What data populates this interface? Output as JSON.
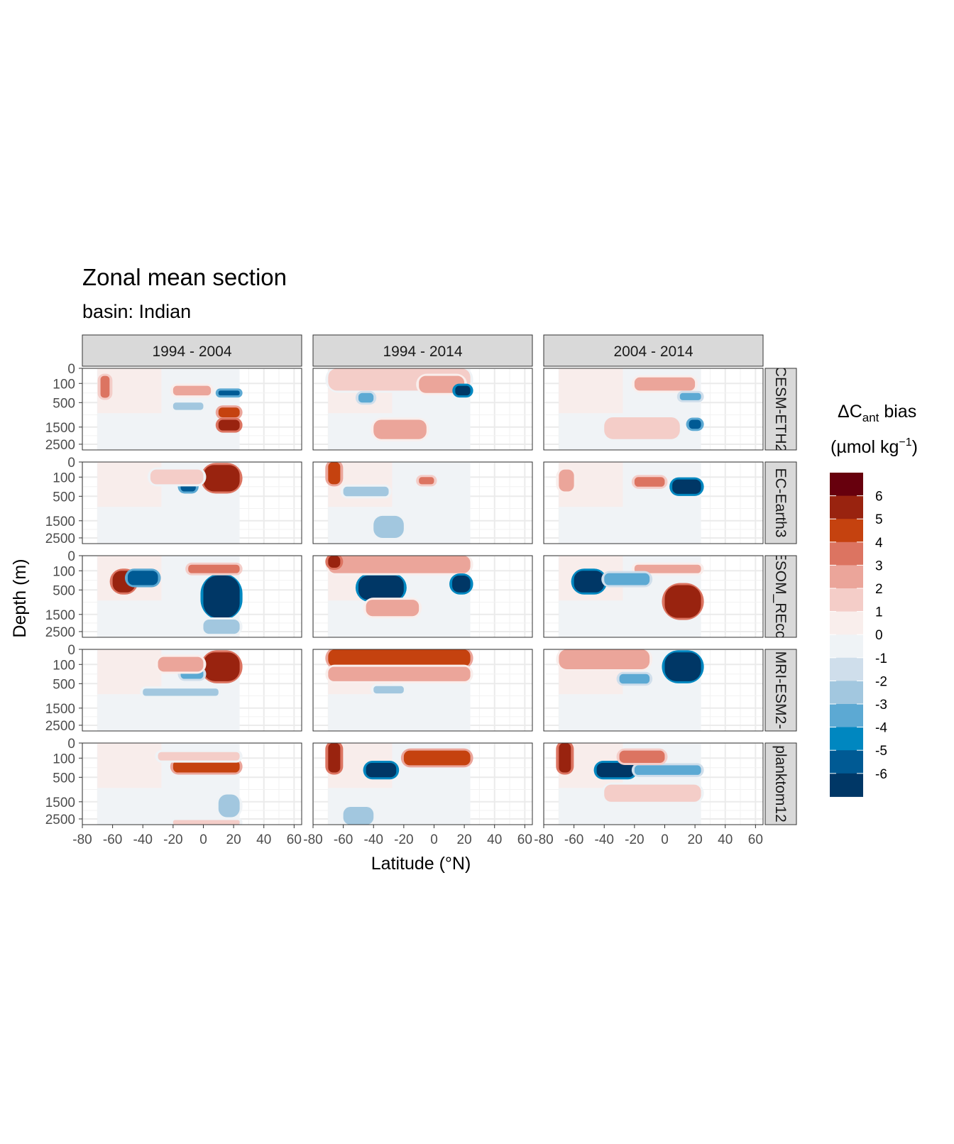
{
  "title": "Zonal mean section",
  "subtitle": "basin: Indian",
  "chart_data": {
    "type": "heatmap",
    "title": "Zonal mean section",
    "subtitle": "basin: Indian",
    "xlabel": "Latitude (°N)",
    "ylabel": "Depth (m)",
    "x_ticks": [
      -80,
      -60,
      -40,
      -20,
      0,
      20,
      40,
      60
    ],
    "x_tick_labels": [
      "-80",
      "-60",
      "-40",
      "-20",
      "0",
      "20",
      "40",
      "60"
    ],
    "xlim": [
      -80,
      65
    ],
    "y_ticks": [
      0,
      100,
      500,
      1500,
      2500
    ],
    "y_tick_labels": [
      "0",
      "100",
      "500",
      "1500",
      "2500"
    ],
    "ylim": [
      3000,
      0
    ],
    "y_reversed": true,
    "data_lat_range": [
      -70,
      24
    ],
    "columns": [
      "1994 - 2004",
      "1994 - 2014",
      "2004 - 2014"
    ],
    "rows": [
      "CESM-ETH2",
      "EC-Earth3",
      "FESOM_REcoM",
      "MRI-ESM2-",
      "planktom12"
    ],
    "row_labels_shown": [
      "CESM-ETH2",
      "EC-Earth3",
      "FESOM_REcoM",
      "MRI-ESM2-",
      "planktom12"
    ],
    "legend": {
      "title_main": "ΔC",
      "title_sub": "ant",
      "title_tail": " bias",
      "unit_main": "(µmol kg",
      "unit_sup": "−1",
      "unit_tail": ")",
      "breaks": [
        "6",
        "5",
        "4",
        "3",
        "2",
        "1",
        "0",
        "-1",
        "-2",
        "-3",
        "-4",
        "-5",
        "-6"
      ],
      "colors": [
        "#67000d",
        "#99230f",
        "#c5420f",
        "#dc7461",
        "#eba59a",
        "#f4cdc8",
        "#f9eeec",
        "#eff3f6",
        "#cfdeeb",
        "#a2c7df",
        "#5ca9d3",
        "#0087c0",
        "#005a94",
        "#003766"
      ],
      "position": "right"
    },
    "panels": [
      {
        "row": "CESM-ETH2",
        "column": "1994 - 2004",
        "features": [
          {
            "lat": [
              -68,
              -62
            ],
            "depth": [
              50,
              400
            ],
            "bias": 4
          },
          {
            "lat": [
              -20,
              5
            ],
            "depth": [
              150,
              350
            ],
            "bias": 3
          },
          {
            "lat": [
              10,
              24
            ],
            "depth": [
              250,
              350
            ],
            "bias": -5
          },
          {
            "lat": [
              10,
              24
            ],
            "depth": [
              700,
              1100
            ],
            "bias": 5
          },
          {
            "lat": [
              10,
              24
            ],
            "depth": [
              1200,
              1700
            ],
            "bias": 6
          },
          {
            "lat": [
              -20,
              0
            ],
            "depth": [
              500,
              800
            ],
            "bias": -2
          }
        ]
      },
      {
        "row": "CESM-ETH2",
        "column": "1994 - 2014",
        "features": [
          {
            "lat": [
              -70,
              24
            ],
            "depth": [
              0,
              250
            ],
            "bias": 2
          },
          {
            "lat": [
              -10,
              20
            ],
            "depth": [
              50,
              300
            ],
            "bias": 3
          },
          {
            "lat": [
              14,
              24
            ],
            "depth": [
              150,
              350
            ],
            "bias": -6
          },
          {
            "lat": [
              -40,
              -5
            ],
            "depth": [
              1200,
              2200
            ],
            "bias": 3
          },
          {
            "lat": [
              -50,
              -40
            ],
            "depth": [
              300,
              500
            ],
            "bias": -3
          }
        ]
      },
      {
        "row": "CESM-ETH2",
        "column": "2004 - 2014",
        "features": [
          {
            "lat": [
              -20,
              20
            ],
            "depth": [
              60,
              250
            ],
            "bias": 3
          },
          {
            "lat": [
              16,
              24
            ],
            "depth": [
              1200,
              1600
            ],
            "bias": -5
          },
          {
            "lat": [
              -40,
              10
            ],
            "depth": [
              1100,
              2200
            ],
            "bias": 2
          },
          {
            "lat": [
              10,
              24
            ],
            "depth": [
              300,
              450
            ],
            "bias": -3
          }
        ]
      },
      {
        "row": "EC-Earth3",
        "column": "1994 - 2004",
        "features": [
          {
            "lat": [
              0,
              24
            ],
            "depth": [
              20,
              400
            ],
            "bias": 6
          },
          {
            "lat": [
              -15,
              -5
            ],
            "depth": [
              200,
              400
            ],
            "bias": -5
          },
          {
            "lat": [
              -35,
              0
            ],
            "depth": [
              50,
              250
            ],
            "bias": 2
          }
        ]
      },
      {
        "row": "EC-Earth3",
        "column": "1994 - 2014",
        "features": [
          {
            "lat": [
              -70,
              -62
            ],
            "depth": [
              0,
              250
            ],
            "bias": 5
          },
          {
            "lat": [
              -60,
              -30
            ],
            "depth": [
              300,
              500
            ],
            "bias": -2
          },
          {
            "lat": [
              -10,
              0
            ],
            "depth": [
              100,
              250
            ],
            "bias": 4
          },
          {
            "lat": [
              -40,
              -20
            ],
            "depth": [
              1300,
              2500
            ],
            "bias": -2
          }
        ]
      },
      {
        "row": "EC-Earth3",
        "column": "2004 - 2014",
        "features": [
          {
            "lat": [
              5,
              24
            ],
            "depth": [
              150,
              450
            ],
            "bias": -6
          },
          {
            "lat": [
              -20,
              0
            ],
            "depth": [
              100,
              300
            ],
            "bias": 4
          },
          {
            "lat": [
              -70,
              -60
            ],
            "depth": [
              50,
              400
            ],
            "bias": 3
          }
        ]
      },
      {
        "row": "FESOM_REcoM",
        "column": "1994 - 2004",
        "features": [
          {
            "lat": [
              0,
              24
            ],
            "depth": [
              200,
              1700
            ],
            "bias": -6
          },
          {
            "lat": [
              -60,
              -45
            ],
            "depth": [
              100,
              600
            ],
            "bias": 6
          },
          {
            "lat": [
              -50,
              -30
            ],
            "depth": [
              100,
              400
            ],
            "bias": -5
          },
          {
            "lat": [
              -10,
              24
            ],
            "depth": [
              60,
              150
            ],
            "bias": 4
          },
          {
            "lat": [
              0,
              24
            ],
            "depth": [
              1800,
              2700
            ],
            "bias": -2
          }
        ]
      },
      {
        "row": "FESOM_REcoM",
        "column": "1994 - 2014",
        "features": [
          {
            "lat": [
              -50,
              -20
            ],
            "depth": [
              200,
              900
            ],
            "bias": -6
          },
          {
            "lat": [
              -70,
              24
            ],
            "depth": [
              0,
              150
            ],
            "bias": 3
          },
          {
            "lat": [
              -70,
              -62
            ],
            "depth": [
              0,
              80
            ],
            "bias": 6
          },
          {
            "lat": [
              12,
              24
            ],
            "depth": [
              200,
              600
            ],
            "bias": -6
          },
          {
            "lat": [
              -45,
              -10
            ],
            "depth": [
              900,
              1600
            ],
            "bias": 3
          }
        ]
      },
      {
        "row": "FESOM_REcoM",
        "column": "2004 - 2014",
        "features": [
          {
            "lat": [
              -60,
              -40
            ],
            "depth": [
              100,
              600
            ],
            "bias": -6
          },
          {
            "lat": [
              0,
              24
            ],
            "depth": [
              400,
              1700
            ],
            "bias": 6
          },
          {
            "lat": [
              -20,
              24
            ],
            "depth": [
              60,
              150
            ],
            "bias": 3
          },
          {
            "lat": [
              -40,
              -10
            ],
            "depth": [
              150,
              400
            ],
            "bias": -3
          }
        ]
      },
      {
        "row": "MRI-ESM2-",
        "column": "1994 - 2004",
        "features": [
          {
            "lat": [
              0,
              24
            ],
            "depth": [
              20,
              450
            ],
            "bias": 6
          },
          {
            "lat": [
              -15,
              0
            ],
            "depth": [
              200,
              400
            ],
            "bias": -3
          },
          {
            "lat": [
              -30,
              0
            ],
            "depth": [
              50,
              250
            ],
            "bias": 3
          },
          {
            "lat": [
              -40,
              10
            ],
            "depth": [
              700,
              1000
            ],
            "bias": -2
          }
        ]
      },
      {
        "row": "MRI-ESM2-",
        "column": "1994 - 2014",
        "features": [
          {
            "lat": [
              -70,
              24
            ],
            "depth": [
              0,
              150
            ],
            "bias": 5
          },
          {
            "lat": [
              -70,
              24
            ],
            "depth": [
              150,
              450
            ],
            "bias": 3
          },
          {
            "lat": [
              -40,
              -20
            ],
            "depth": [
              600,
              900
            ],
            "bias": -2
          }
        ]
      },
      {
        "row": "MRI-ESM2-",
        "column": "2004 - 2014",
        "features": [
          {
            "lat": [
              0,
              24
            ],
            "depth": [
              20,
              450
            ],
            "bias": -6
          },
          {
            "lat": [
              -70,
              -10
            ],
            "depth": [
              0,
              200
            ],
            "bias": 3
          },
          {
            "lat": [
              -30,
              -10
            ],
            "depth": [
              300,
              500
            ],
            "bias": -3
          }
        ]
      },
      {
        "row": "planktom12",
        "column": "1994 - 2004",
        "features": [
          {
            "lat": [
              -20,
              24
            ],
            "depth": [
              150,
              400
            ],
            "bias": 5
          },
          {
            "lat": [
              -30,
              24
            ],
            "depth": [
              60,
              150
            ],
            "bias": 2
          },
          {
            "lat": [
              10,
              24
            ],
            "depth": [
              1200,
              2400
            ],
            "bias": -2
          },
          {
            "lat": [
              -20,
              24
            ],
            "depth": [
              2600,
              3000
            ],
            "bias": 2
          }
        ]
      },
      {
        "row": "planktom12",
        "column": "1994 - 2014",
        "features": [
          {
            "lat": [
              -45,
              -25
            ],
            "depth": [
              200,
              500
            ],
            "bias": -6
          },
          {
            "lat": [
              -70,
              -62
            ],
            "depth": [
              0,
              400
            ],
            "bias": 6
          },
          {
            "lat": [
              -20,
              24
            ],
            "depth": [
              50,
              250
            ],
            "bias": 5
          },
          {
            "lat": [
              -60,
              -40
            ],
            "depth": [
              1800,
              3000
            ],
            "bias": -2
          }
        ]
      },
      {
        "row": "planktom12",
        "column": "2004 - 2014",
        "features": [
          {
            "lat": [
              -45,
              -20
            ],
            "depth": [
              200,
              500
            ],
            "bias": -6
          },
          {
            "lat": [
              -20,
              24
            ],
            "depth": [
              250,
              450
            ],
            "bias": -3
          },
          {
            "lat": [
              -70,
              -62
            ],
            "depth": [
              0,
              400
            ],
            "bias": 6
          },
          {
            "lat": [
              -30,
              0
            ],
            "depth": [
              50,
              200
            ],
            "bias": 4
          },
          {
            "lat": [
              -40,
              24
            ],
            "depth": [
              800,
              1500
            ],
            "bias": 2
          }
        ]
      }
    ]
  }
}
